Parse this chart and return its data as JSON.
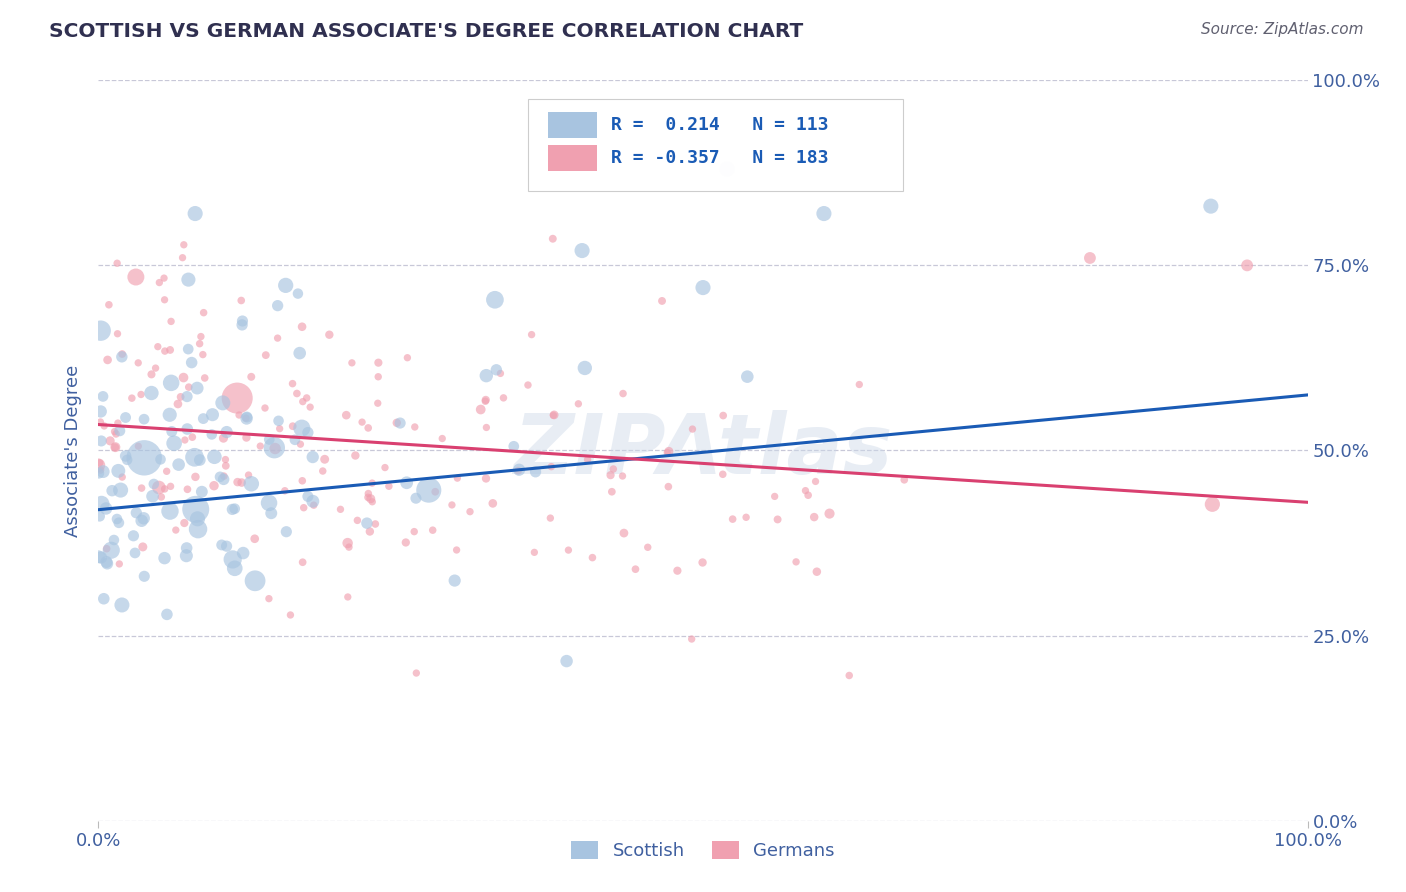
{
  "title": "SCOTTISH VS GERMAN ASSOCIATE'S DEGREE CORRELATION CHART",
  "source": "Source: ZipAtlas.com",
  "ylabel": "Associate's Degree",
  "xlim": [
    0.0,
    1.0
  ],
  "ylim": [
    0.0,
    1.0
  ],
  "xtick_labels": [
    "0.0%",
    "100.0%"
  ],
  "ytick_labels": [
    "0.0%",
    "25.0%",
    "50.0%",
    "75.0%",
    "100.0%"
  ],
  "ytick_positions": [
    0.0,
    0.25,
    0.5,
    0.75,
    1.0
  ],
  "watermark": "ZIPAtlas",
  "legend_r_scottish": "R =  0.214",
  "legend_n_scottish": "N = 113",
  "legend_r_german": "R = -0.357",
  "legend_n_german": "N = 183",
  "scottish_color": "#a8c4e0",
  "german_color": "#f0a0b0",
  "scottish_line_color": "#1a5bb5",
  "german_line_color": "#d94070",
  "scottish_intercept": 0.42,
  "scottish_slope": 0.155,
  "german_intercept": 0.535,
  "german_slope": -0.105,
  "background_color": "#ffffff",
  "grid_color": "#c8c8d8",
  "title_color": "#303050",
  "axis_label_color": "#4060a0",
  "tick_label_color": "#4060a0"
}
